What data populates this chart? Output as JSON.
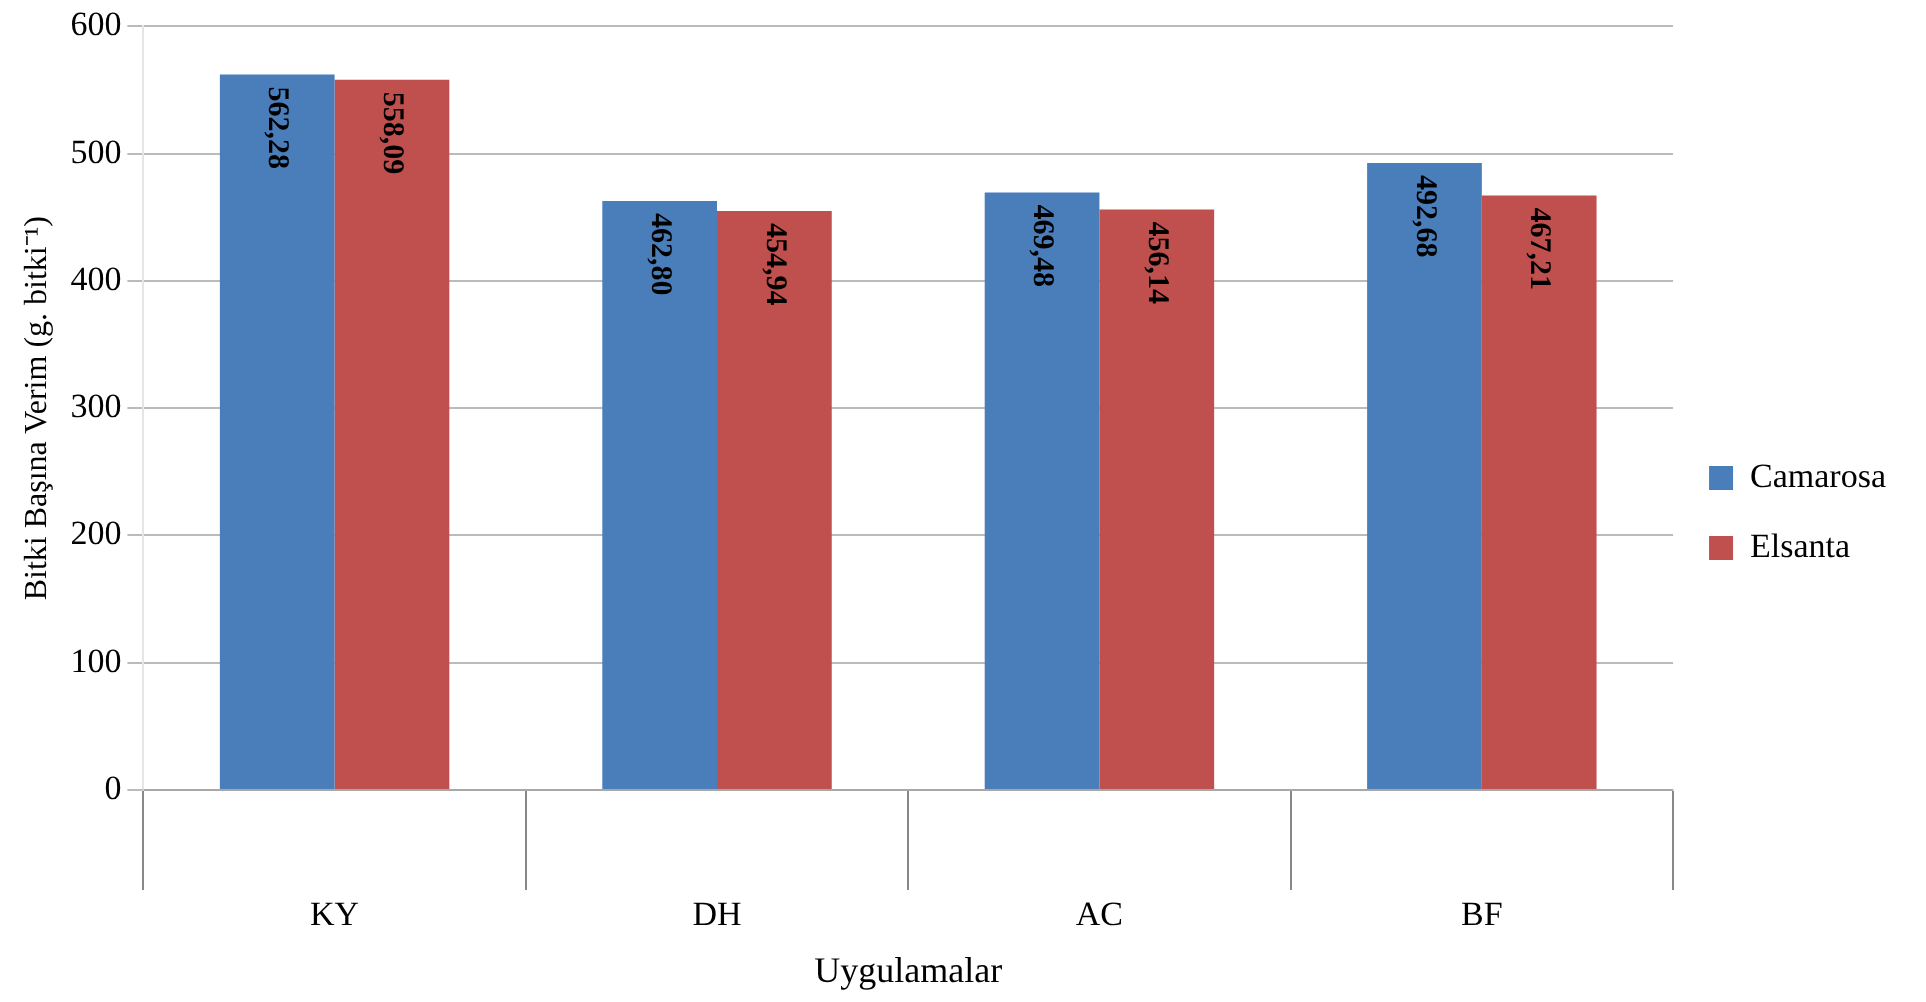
{
  "chart_data": {
    "type": "bar",
    "xlabel": "Uygulamalar",
    "ylabel": "Bitki Başına Verim (g. bitki⁻¹)",
    "categories": [
      "KY",
      "DH",
      "AC",
      "BF"
    ],
    "series": [
      {
        "name": "Camarosa",
        "color": "#4a7ebb",
        "values": [
          562.28,
          462.8,
          469.48,
          492.68
        ],
        "value_labels": [
          "562,28",
          "462,80",
          "469,48",
          "492,68"
        ]
      },
      {
        "name": "Elsanta",
        "color": "#c0504d",
        "values": [
          558.09,
          454.94,
          456.14,
          467.21
        ],
        "value_labels": [
          "558,09",
          "454,94",
          "456,14",
          "467,21"
        ]
      }
    ],
    "ylim": [
      0,
      600
    ],
    "yticks": [
      0,
      100,
      200,
      300,
      400,
      500,
      600
    ],
    "grid": "y",
    "legend": "right"
  }
}
